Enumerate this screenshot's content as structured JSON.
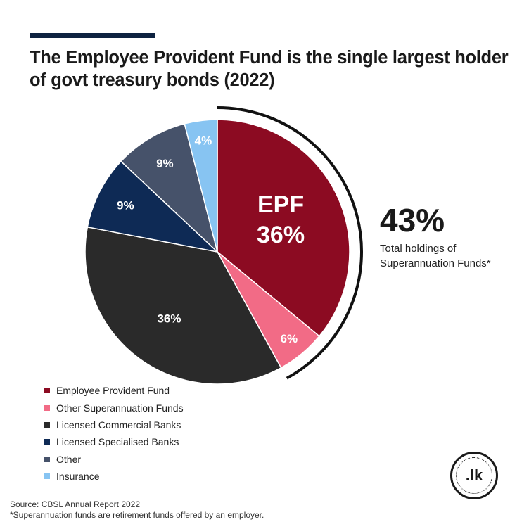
{
  "title": "The Employee Provident Fund is the single largest holder of govt treasury bonds (2022)",
  "highlight": {
    "value": "43%",
    "caption": "Total holdings of Superannuation Funds*"
  },
  "chart_data": {
    "type": "pie",
    "slices": [
      {
        "name": "Employee Provident Fund",
        "value": 36,
        "label": "36%",
        "callout": "EPF",
        "color": "#8c0b22"
      },
      {
        "name": "Other Superannuation Funds",
        "value": 6,
        "label": "6%",
        "color": "#f26b86"
      },
      {
        "name": "Licensed Commercial Banks",
        "value": 36,
        "label": "36%",
        "color": "#2a2a2a"
      },
      {
        "name": "Licensed Specialised Banks",
        "value": 9,
        "label": "9%",
        "color": "#0e2a55"
      },
      {
        "name": "Other",
        "value": 9,
        "label": "9%",
        "color": "#46526a"
      },
      {
        "name": "Insurance",
        "value": 4,
        "label": "4%",
        "color": "#87c4f2"
      }
    ],
    "legend_position": "bottom-left"
  },
  "legend": [
    {
      "label": "Employee Provident Fund",
      "color": "#8c0b22"
    },
    {
      "label": "Other Superannuation Funds",
      "color": "#f26b86"
    },
    {
      "label": "Licensed Commercial Banks",
      "color": "#2a2a2a"
    },
    {
      "label": "Licensed Specialised Banks",
      "color": "#0e2a55"
    },
    {
      "label": "Other",
      "color": "#46526a"
    },
    {
      "label": "Insurance",
      "color": "#87c4f2"
    }
  ],
  "logo_text": ".lk",
  "source": "Source: CBSL Annual Report 2022",
  "footnote": "*Superannuation funds are retirement funds offered by an employer."
}
